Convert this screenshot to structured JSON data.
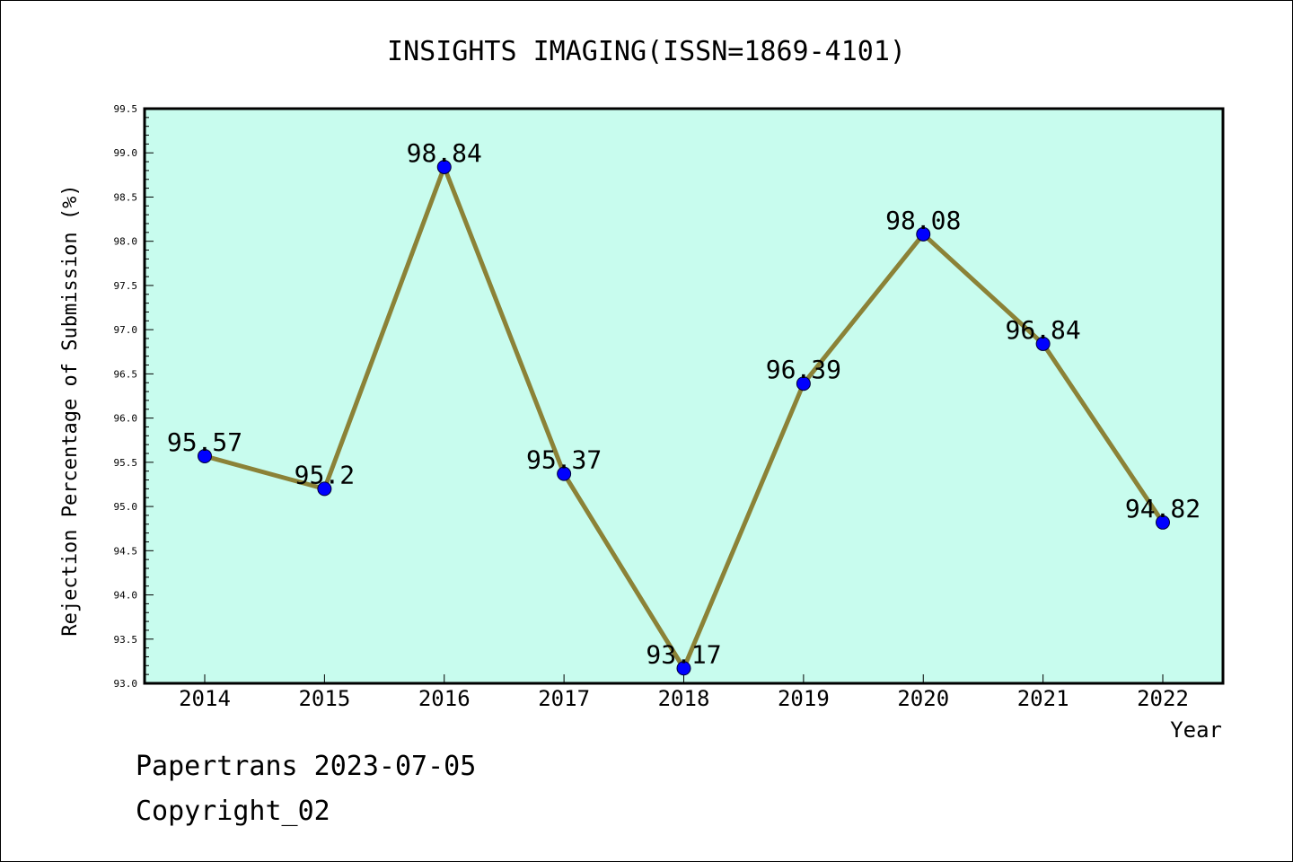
{
  "chart_data": {
    "type": "line",
    "title": "INSIGHTS IMAGING(ISSN=1869-4101)",
    "xlabel": "Year",
    "ylabel": "Rejection Percentage of Submission (%)",
    "categories": [
      "2014",
      "2015",
      "2016",
      "2017",
      "2018",
      "2019",
      "2020",
      "2021",
      "2022"
    ],
    "values": [
      95.57,
      95.2,
      98.84,
      95.37,
      93.17,
      96.39,
      98.08,
      96.84,
      94.82
    ],
    "data_labels": [
      "95.57",
      "95.2",
      "98.84",
      "95.37",
      "93.17",
      "96.39",
      "98.08",
      "96.84",
      "94.82"
    ],
    "ylim": [
      93.0,
      99.5
    ],
    "yticks": [
      "93.0",
      "93.5",
      "94.0",
      "94.5",
      "95.0",
      "95.5",
      "96.0",
      "96.5",
      "97.0",
      "97.5",
      "98.0",
      "98.5",
      "99.0",
      "99.5"
    ],
    "ytick_values": [
      93.0,
      93.5,
      94.0,
      94.5,
      95.0,
      95.5,
      96.0,
      96.5,
      97.0,
      97.5,
      98.0,
      98.5,
      99.0,
      99.5
    ],
    "grid": false,
    "colors": {
      "plot_background": "#c8fcee",
      "line": "#8b8237",
      "marker": "#0000ff"
    }
  },
  "footer": {
    "source": "Papertrans 2023-07-05",
    "copyright": "Copyright_02"
  }
}
